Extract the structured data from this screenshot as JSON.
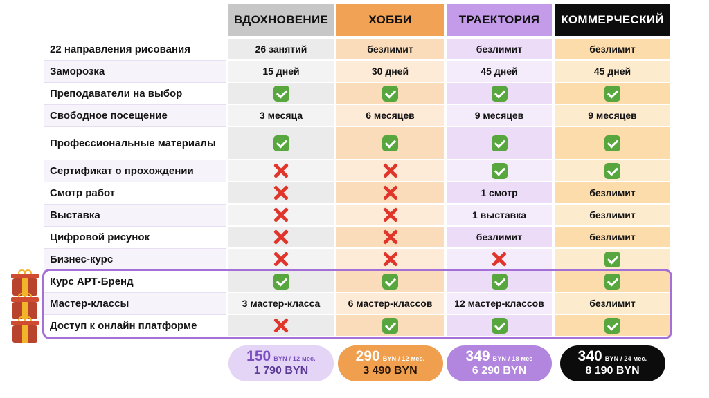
{
  "columns": [
    {
      "id": "inspiration",
      "label": "ВДОХНОВЕНИЕ",
      "header_bg": "#c7c7c7",
      "header_fg": "#111111",
      "cell_bg": "#ebebeb",
      "pill": {
        "bg": "#e4d4f5",
        "fg": "#7a4fc0",
        "total_fg": "#5c3b96",
        "price": "150",
        "unit": "BYN / 12 мес.",
        "total": "1 790 BYN"
      }
    },
    {
      "id": "hobby",
      "label": "ХОББИ",
      "header_bg": "#f2a254",
      "header_fg": "#111111",
      "cell_bg": "#fbdcba",
      "pill": {
        "bg": "#ef9f4d",
        "fg": "#ffffff",
        "total_fg": "#241303",
        "price": "290",
        "unit": "BYN / 12 мес.",
        "total": "3 490 BYN"
      }
    },
    {
      "id": "trajectory",
      "label": "ТРАЕКТОРИЯ",
      "header_bg": "#c49be9",
      "header_fg": "#111111",
      "cell_bg": "#ecdcf8",
      "pill": {
        "bg": "#b286de",
        "fg": "#ffffff",
        "total_fg": "#ffffff",
        "price": "349",
        "unit": "BYN / 18 мес",
        "total": "6 290 BYN"
      }
    },
    {
      "id": "commercial",
      "label": "КОММЕРЧЕСКИЙ",
      "header_bg": "#0d0d0d",
      "header_fg": "#ffffff",
      "cell_bg": "#fcdcab",
      "pill": {
        "bg": "#0c0c0c",
        "fg": "#ffffff",
        "total_fg": "#ffffff",
        "price": "340",
        "unit": "BYN / 24 мес.",
        "total": "8 190 BYN"
      }
    }
  ],
  "rows": [
    {
      "label": "22 направления рисования",
      "cells": [
        {
          "text": "26 занятий"
        },
        {
          "text": "безлимит"
        },
        {
          "text": "безлимит"
        },
        {
          "text": "безлимит"
        }
      ]
    },
    {
      "label": "Заморозка",
      "cells": [
        {
          "text": "15 дней"
        },
        {
          "text": "30 дней"
        },
        {
          "text": "45 дней"
        },
        {
          "text": "45 дней"
        }
      ]
    },
    {
      "label": "Преподаватели на выбор",
      "cells": [
        {
          "icon": "check"
        },
        {
          "icon": "check"
        },
        {
          "icon": "check"
        },
        {
          "icon": "check"
        }
      ]
    },
    {
      "label": "Свободное посещение",
      "cells": [
        {
          "text": "3 месяца"
        },
        {
          "text": "6 месяцев"
        },
        {
          "text": "9 месяцев"
        },
        {
          "text": "9 месяцев"
        }
      ]
    },
    {
      "label": "Профессиональные материалы",
      "tall": true,
      "cells": [
        {
          "icon": "check"
        },
        {
          "icon": "check"
        },
        {
          "icon": "check"
        },
        {
          "icon": "check"
        }
      ]
    },
    {
      "label": "Сертификат о прохождении",
      "cells": [
        {
          "icon": "cross"
        },
        {
          "icon": "cross"
        },
        {
          "icon": "check"
        },
        {
          "icon": "check"
        }
      ]
    },
    {
      "label": "Смотр работ",
      "cells": [
        {
          "icon": "cross"
        },
        {
          "icon": "cross"
        },
        {
          "text": "1 смотр"
        },
        {
          "text": "безлимит"
        }
      ]
    },
    {
      "label": "Выставка",
      "cells": [
        {
          "icon": "cross"
        },
        {
          "icon": "cross"
        },
        {
          "text": "1 выставка"
        },
        {
          "text": "безлимит"
        }
      ]
    },
    {
      "label": "Цифровой рисунок",
      "cells": [
        {
          "icon": "cross"
        },
        {
          "icon": "cross"
        },
        {
          "text": "безлимит"
        },
        {
          "text": "безлимит"
        }
      ]
    },
    {
      "label": "Бизнес-курс",
      "cells": [
        {
          "icon": "cross"
        },
        {
          "icon": "cross"
        },
        {
          "icon": "cross"
        },
        {
          "icon": "check"
        }
      ]
    },
    {
      "label": "Курс АРТ-Бренд",
      "highlight": true,
      "cells": [
        {
          "icon": "check"
        },
        {
          "icon": "check"
        },
        {
          "icon": "check"
        },
        {
          "icon": "check"
        }
      ]
    },
    {
      "label": "Мастер-классы",
      "highlight": true,
      "cells": [
        {
          "text": "3 мастер-класса"
        },
        {
          "text": "6 мастер-классов"
        },
        {
          "text": "12 мастер-классов"
        },
        {
          "text": "безлимит"
        }
      ]
    },
    {
      "label": "Доступ к онлайн платформе",
      "highlight": true,
      "cells": [
        {
          "icon": "cross"
        },
        {
          "icon": "check"
        },
        {
          "icon": "check"
        },
        {
          "icon": "check"
        }
      ]
    }
  ],
  "highlight": {
    "accent_color": "#a46fd6"
  }
}
